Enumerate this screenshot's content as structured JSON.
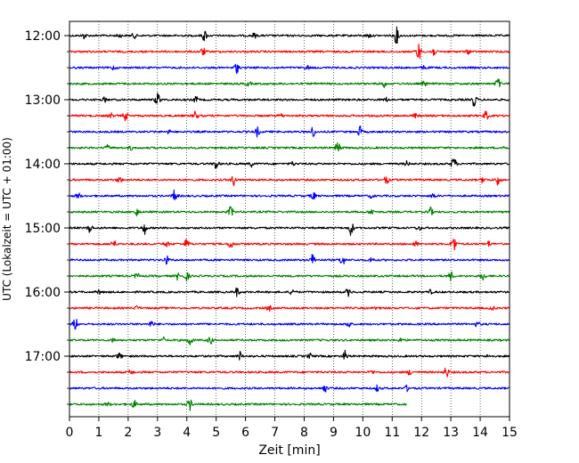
{
  "chart_data": {
    "type": "line",
    "title": "",
    "xlabel": "Zeit  [min]",
    "ylabel": "UTC (Lokalzeit = UTC + 01:00)",
    "xlim": [
      0,
      15
    ],
    "x_ticks": [
      "0",
      "1",
      "2",
      "3",
      "4",
      "5",
      "6",
      "7",
      "8",
      "9",
      "10",
      "11",
      "12",
      "13",
      "14",
      "15"
    ],
    "hour_labels": [
      "12:00",
      "13:00",
      "14:00",
      "15:00",
      "16:00",
      "17:00"
    ],
    "grid": "vertical-dotted",
    "colors": [
      "#000000",
      "#ff0000",
      "#0000ff",
      "#008000"
    ],
    "series": [
      {
        "start_time": "12:00",
        "x_end": 15,
        "color": "#000000",
        "events": [
          [
            0.5,
            0.45
          ],
          [
            1.7,
            0.3
          ],
          [
            2.2,
            0.4
          ],
          [
            4.6,
            0.9
          ],
          [
            6.3,
            0.35
          ],
          [
            10.2,
            0.3
          ],
          [
            11.15,
            1.3
          ]
        ]
      },
      {
        "start_time": "12:15",
        "x_end": 15,
        "color": "#ff0000",
        "events": [
          [
            4.55,
            0.6
          ],
          [
            11.9,
            1.4
          ],
          [
            12.4,
            0.7
          ],
          [
            13.6,
            0.3
          ]
        ]
      },
      {
        "start_time": "12:30",
        "x_end": 15,
        "color": "#0000ff",
        "events": [
          [
            1.5,
            0.3
          ],
          [
            5.7,
            0.8
          ],
          [
            8.1,
            0.3
          ],
          [
            12.1,
            0.3
          ]
        ]
      },
      {
        "start_time": "12:45",
        "x_end": 15,
        "color": "#008000",
        "events": [
          [
            6.1,
            0.4
          ],
          [
            10.7,
            0.6
          ],
          [
            12.1,
            0.4
          ],
          [
            14.6,
            0.9
          ]
        ]
      },
      {
        "start_time": "13:00",
        "x_end": 15,
        "color": "#000000",
        "events": [
          [
            1.2,
            0.35
          ],
          [
            3.0,
            1.2
          ],
          [
            4.3,
            0.5
          ],
          [
            10.8,
            0.3
          ],
          [
            13.8,
            1.1
          ]
        ]
      },
      {
        "start_time": "13:15",
        "x_end": 15,
        "color": "#ff0000",
        "events": [
          [
            1.4,
            0.4
          ],
          [
            1.9,
            0.7
          ],
          [
            4.3,
            0.8
          ],
          [
            7.2,
            0.3
          ],
          [
            11.8,
            0.3
          ],
          [
            14.2,
            0.7
          ]
        ]
      },
      {
        "start_time": "13:30",
        "x_end": 15,
        "color": "#0000ff",
        "events": [
          [
            3.4,
            0.3
          ],
          [
            6.4,
            0.7
          ],
          [
            8.3,
            0.8
          ],
          [
            9.9,
            0.8
          ]
        ]
      },
      {
        "start_time": "13:45",
        "x_end": 15,
        "color": "#008000",
        "events": [
          [
            1.3,
            0.4
          ],
          [
            2.1,
            0.3
          ],
          [
            9.15,
            1.1
          ],
          [
            14.8,
            0.3
          ]
        ]
      },
      {
        "start_time": "14:00",
        "x_end": 15,
        "color": "#000000",
        "events": [
          [
            5.0,
            0.9
          ],
          [
            6.2,
            0.4
          ],
          [
            7.6,
            0.3
          ],
          [
            11.5,
            0.4
          ],
          [
            13.1,
            1.2
          ]
        ]
      },
      {
        "start_time": "14:15",
        "x_end": 15,
        "color": "#ff0000",
        "events": [
          [
            1.7,
            0.5
          ],
          [
            5.6,
            0.9
          ],
          [
            10.8,
            0.6
          ],
          [
            14.1,
            0.5
          ],
          [
            14.6,
            0.8
          ]
        ]
      },
      {
        "start_time": "14:30",
        "x_end": 15,
        "color": "#0000ff",
        "events": [
          [
            0.3,
            0.5
          ],
          [
            3.6,
            1.1
          ],
          [
            8.3,
            0.7
          ],
          [
            10.3,
            0.3
          ],
          [
            12.4,
            0.4
          ]
        ]
      },
      {
        "start_time": "14:45",
        "x_end": 15,
        "color": "#008000",
        "events": [
          [
            2.3,
            0.6
          ],
          [
            5.5,
            0.9
          ],
          [
            10.3,
            0.5
          ],
          [
            12.3,
            0.7
          ]
        ]
      },
      {
        "start_time": "15:00",
        "x_end": 15,
        "color": "#000000",
        "events": [
          [
            0.7,
            0.8
          ],
          [
            2.55,
            1.0
          ],
          [
            9.6,
            1.2
          ],
          [
            11.9,
            0.4
          ]
        ]
      },
      {
        "start_time": "15:15",
        "x_end": 15,
        "color": "#ff0000",
        "events": [
          [
            1.5,
            0.7
          ],
          [
            3.3,
            0.5
          ],
          [
            4.0,
            0.8
          ],
          [
            5.5,
            0.8
          ],
          [
            11.8,
            0.4
          ],
          [
            13.1,
            1.5
          ],
          [
            14.3,
            0.4
          ]
        ]
      },
      {
        "start_time": "15:30",
        "x_end": 15,
        "color": "#0000ff",
        "events": [
          [
            3.3,
            0.7
          ],
          [
            8.3,
            1.0
          ],
          [
            9.3,
            1.0
          ],
          [
            10.3,
            0.4
          ]
        ]
      },
      {
        "start_time": "15:45",
        "x_end": 15,
        "color": "#008000",
        "events": [
          [
            2.3,
            0.5
          ],
          [
            3.7,
            0.6
          ],
          [
            4.0,
            0.7
          ],
          [
            13.0,
            0.7
          ],
          [
            14.1,
            0.7
          ]
        ]
      },
      {
        "start_time": "16:00",
        "x_end": 15,
        "color": "#000000",
        "events": [
          [
            1.0,
            0.3
          ],
          [
            5.7,
            0.7
          ],
          [
            7.6,
            0.5
          ],
          [
            9.5,
            0.6
          ],
          [
            12.3,
            0.3
          ]
        ]
      },
      {
        "start_time": "16:15",
        "x_end": 15,
        "color": "#ff0000",
        "events": [
          [
            2.3,
            0.3
          ],
          [
            6.8,
            0.4
          ],
          [
            10.5,
            0.3
          ],
          [
            14.4,
            0.3
          ]
        ]
      },
      {
        "start_time": "16:30",
        "x_end": 15,
        "color": "#0000ff",
        "events": [
          [
            0.2,
            1.0
          ],
          [
            2.8,
            0.5
          ],
          [
            9.5,
            0.6
          ],
          [
            13.9,
            0.4
          ]
        ]
      },
      {
        "start_time": "16:45",
        "x_end": 15,
        "color": "#008000",
        "events": [
          [
            1.5,
            0.3
          ],
          [
            3.2,
            0.4
          ],
          [
            4.1,
            0.9
          ],
          [
            4.8,
            0.6
          ],
          [
            11.3,
            0.3
          ]
        ]
      },
      {
        "start_time": "17:00",
        "x_end": 15,
        "color": "#000000",
        "events": [
          [
            1.7,
            0.5
          ],
          [
            5.8,
            0.7
          ],
          [
            8.2,
            0.4
          ],
          [
            9.4,
            0.8
          ],
          [
            14.3,
            0.3
          ]
        ]
      },
      {
        "start_time": "17:15",
        "x_end": 15,
        "color": "#ff0000",
        "events": [
          [
            2.1,
            0.4
          ],
          [
            10.3,
            0.3
          ],
          [
            11.6,
            0.4
          ],
          [
            12.85,
            0.9
          ]
        ]
      },
      {
        "start_time": "17:30",
        "x_end": 15,
        "color": "#0000ff",
        "events": [
          [
            8.7,
            0.6
          ],
          [
            10.5,
            0.5
          ],
          [
            11.5,
            0.4
          ]
        ]
      },
      {
        "start_time": "17:45",
        "x_end": 11.5,
        "color": "#008000",
        "events": [
          [
            1.3,
            0.3
          ],
          [
            2.2,
            0.6
          ],
          [
            4.1,
            0.9
          ]
        ]
      }
    ]
  }
}
